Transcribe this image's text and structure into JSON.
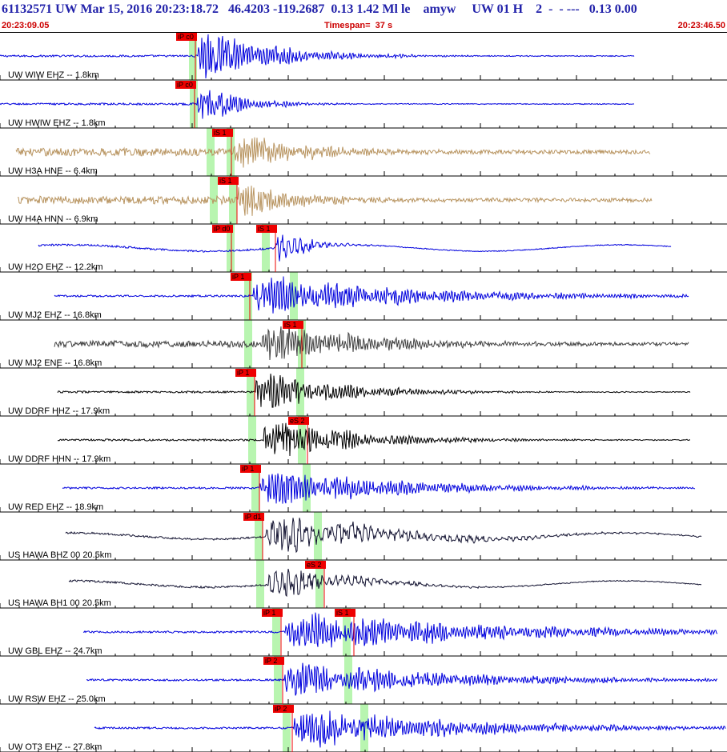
{
  "header": {
    "title": "61132571 UW Mar 15, 2016 20:23:18.72   46.4203 -119.2687  0.13 1.42 Ml le    amyw     UW 01 H    2  -  - ---   0.13 0.00",
    "start_time": "20:23:09.05",
    "timespan": "Timespan=  37 s",
    "end_time": "20:23:46.50"
  },
  "colors": {
    "blue": "#0000dd",
    "tan": "#b89460",
    "gray": "#404040",
    "black": "#000000",
    "navy": "#141432",
    "pick": "#ee0000",
    "window": "#b8f5b0",
    "title": "#2222aa"
  },
  "traces": [
    {
      "label": "UW WIW EHZ -- 1.8km",
      "color": "blue",
      "x0": 0,
      "x1": 792,
      "amp": 32,
      "onset": 248,
      "decay": 0.012,
      "freq": 1.0,
      "picks": [
        {
          "text": "iP c0",
          "x": 220
        }
      ],
      "win": [
        236,
        246
      ]
    },
    {
      "label": "UW HWIW EHZ -- 1.8km",
      "color": "blue",
      "x0": 0,
      "x1": 792,
      "amp": 24,
      "onset": 247,
      "decay": 0.02,
      "freq": 1.0,
      "picks": [
        {
          "text": "iP c0",
          "x": 219
        }
      ],
      "win": [
        237,
        247
      ]
    },
    {
      "label": "UW H3A HNE -- 6.4km",
      "color": "tan",
      "x0": 20,
      "x1": 812,
      "amp": 22,
      "onset": 293,
      "decay": 0.012,
      "freq": 1.2,
      "noise": 5,
      "picks": [
        {
          "text": "iS 1",
          "x": 265
        }
      ],
      "win": [
        258,
        268,
        283,
        293
      ]
    },
    {
      "label": "UW H4A HNN -- 6.9km",
      "color": "tan",
      "x0": 22,
      "x1": 814,
      "amp": 24,
      "onset": 298,
      "decay": 0.015,
      "freq": 1.2,
      "noise": 5,
      "picks": [
        {
          "text": "iS 1",
          "x": 272
        }
      ],
      "win": [
        262,
        272,
        286,
        296
      ]
    },
    {
      "label": "UW H2O EHZ -- 12.2km",
      "color": "blue",
      "x0": 48,
      "x1": 838,
      "amp": 22,
      "onset": 345,
      "decay": 0.03,
      "freq": 0.5,
      "picks": [
        {
          "text": "iP d0",
          "x": 265
        },
        {
          "text": "iS 1",
          "x": 320
        }
      ],
      "win": [
        283,
        293,
        327,
        337
      ]
    },
    {
      "label": "UW MJ2 EHZ -- 16.8km",
      "color": "blue",
      "x0": 68,
      "x1": 860,
      "amp": 22,
      "onset": 317,
      "decay": 0.005,
      "freq": 1.0,
      "picks": [
        {
          "text": "iP 1",
          "x": 288
        }
      ],
      "win": [
        305,
        315,
        362,
        372
      ]
    },
    {
      "label": "UW MJ2 ENE -- 16.8km",
      "color": "gray",
      "x0": 68,
      "x1": 860,
      "amp": 24,
      "onset": 328,
      "decay": 0.008,
      "freq": 1.0,
      "noise": 4,
      "picks": [
        {
          "text": "iS 1",
          "x": 353
        }
      ],
      "win": [
        305,
        315,
        372,
        382
      ]
    },
    {
      "label": "UW DDRF HHZ -- 17.9km",
      "color": "black",
      "x0": 72,
      "x1": 862,
      "amp": 24,
      "onset": 320,
      "decay": 0.01,
      "freq": 1.0,
      "picks": [
        {
          "text": "iP 1",
          "x": 294
        }
      ],
      "win": [
        308,
        318,
        370,
        380
      ]
    },
    {
      "label": "UW DDRF HHN -- 17.9km",
      "color": "black",
      "x0": 72,
      "x1": 862,
      "amp": 24,
      "onset": 330,
      "decay": 0.009,
      "freq": 1.0,
      "picks": [
        {
          "text": "eS 2",
          "x": 360
        }
      ],
      "win": [
        310,
        320,
        372,
        382
      ]
    },
    {
      "label": "UW RED EHZ -- 18.9km",
      "color": "blue",
      "x0": 78,
      "x1": 868,
      "amp": 22,
      "onset": 325,
      "decay": 0.006,
      "freq": 1.0,
      "picks": [
        {
          "text": "iP 1",
          "x": 300
        }
      ],
      "win": [
        314,
        324,
        378,
        388
      ]
    },
    {
      "label": "US HAWA BHZ 00 20.5km",
      "color": "navy",
      "x0": 82,
      "x1": 876,
      "amp": 22,
      "onset": 332,
      "decay": 0.007,
      "freq": 0.45,
      "picks": [
        {
          "text": "iP d1",
          "x": 304
        }
      ],
      "win": [
        318,
        328,
        392,
        402
      ]
    },
    {
      "label": "US HAWA BH1 00 20.5km",
      "color": "navy",
      "x0": 86,
      "x1": 876,
      "amp": 20,
      "onset": 336,
      "decay": 0.012,
      "freq": 0.45,
      "picks": [
        {
          "text": "eS 2",
          "x": 381
        }
      ],
      "win": [
        320,
        330,
        394,
        404
      ]
    },
    {
      "label": "UW GBL EHZ -- 24.7km",
      "color": "blue",
      "x0": 104,
      "x1": 896,
      "amp": 22,
      "onset": 357,
      "decay": 0.004,
      "freq": 1.0,
      "picks": [
        {
          "text": "iP 1",
          "x": 327
        },
        {
          "text": "iS 1",
          "x": 418
        }
      ],
      "win": [
        340,
        350,
        428,
        438
      ]
    },
    {
      "label": "UW RSW EHZ -- 25.0km",
      "color": "blue",
      "x0": 108,
      "x1": 896,
      "amp": 20,
      "onset": 356,
      "decay": 0.005,
      "freq": 1.0,
      "picks": [
        {
          "text": "iP 2",
          "x": 329
        }
      ],
      "win": [
        342,
        352,
        430,
        440
      ]
    },
    {
      "label": "UW OT3 EHZ -- 27.8km",
      "color": "blue",
      "x0": 118,
      "x1": 906,
      "amp": 22,
      "onset": 368,
      "decay": 0.005,
      "freq": 1.0,
      "picks": [
        {
          "text": "iP 2",
          "x": 341
        }
      ],
      "win": [
        353,
        363,
        450,
        460
      ]
    }
  ]
}
